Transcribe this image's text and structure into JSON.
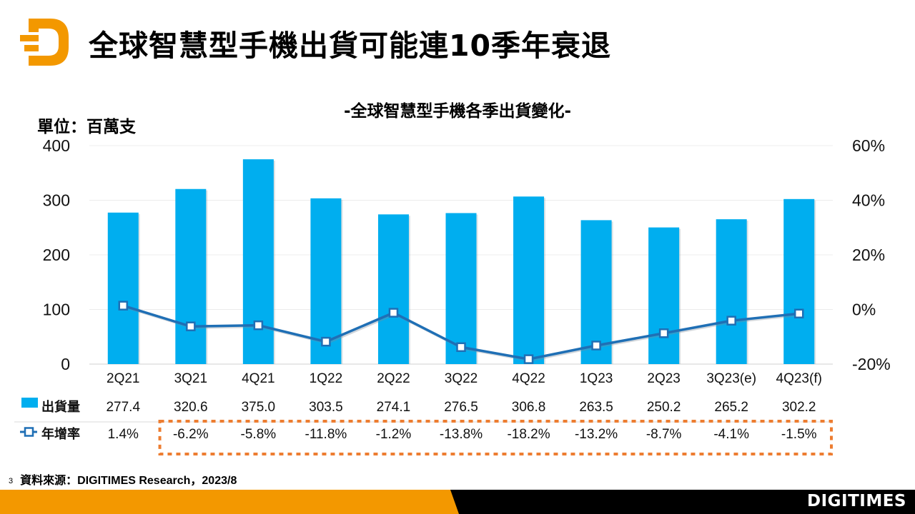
{
  "header": {
    "title": "全球智慧型手機出貨可能連10季年衰退",
    "logo_icon": "digitimes-d-logo-icon"
  },
  "colors": {
    "bar": "#00AEEF",
    "line": "#1F6FB5",
    "accent_orange": "#F39800",
    "highlight_box": "#ED7D31",
    "footer_black": "#000000"
  },
  "chart_data": {
    "type": "bar",
    "title": "-全球智慧型手機各季出貨變化-",
    "unit_label": "單位：百萬支",
    "categories": [
      "2Q21",
      "3Q21",
      "4Q21",
      "1Q22",
      "2Q22",
      "3Q22",
      "4Q22",
      "1Q23",
      "2Q23",
      "3Q23(e)",
      "4Q23(f)"
    ],
    "series": [
      {
        "name": "出貨量",
        "type": "bar",
        "axis": "left",
        "values": [
          277.4,
          320.6,
          375.0,
          303.5,
          274.1,
          276.5,
          306.8,
          263.5,
          250.2,
          265.2,
          302.2
        ],
        "labels": [
          "277.4",
          "320.6",
          "375.0",
          "303.5",
          "274.1",
          "276.5",
          "306.8",
          "263.5",
          "250.2",
          "265.2",
          "302.2"
        ]
      },
      {
        "name": "年增率",
        "type": "line",
        "axis": "right",
        "values": [
          1.4,
          -6.2,
          -5.8,
          -11.8,
          -1.2,
          -13.8,
          -18.2,
          -13.2,
          -8.7,
          -4.1,
          -1.5
        ],
        "labels": [
          "1.4%",
          "-6.2%",
          "-5.8%",
          "-11.8%",
          "-1.2%",
          "-13.8%",
          "-18.2%",
          "-13.2%",
          "-8.7%",
          "-4.1%",
          "-1.5%"
        ]
      }
    ],
    "ylim_left": [
      0,
      400
    ],
    "yticks_left": [
      "0",
      "100",
      "200",
      "300",
      "400"
    ],
    "ylim_right": [
      -20,
      60
    ],
    "yticks_right": [
      "-20%",
      "0%",
      "20%",
      "40%",
      "60%"
    ],
    "grid": true,
    "legend": "data-table-bottom",
    "highlight": "年增率 3Q21–4Q23(f) enclosed by orange dashed box"
  },
  "footer": {
    "page_number": "3",
    "source": "資料來源：DIGITIMES Research，2023/8",
    "brand": "DIGITIMES"
  }
}
